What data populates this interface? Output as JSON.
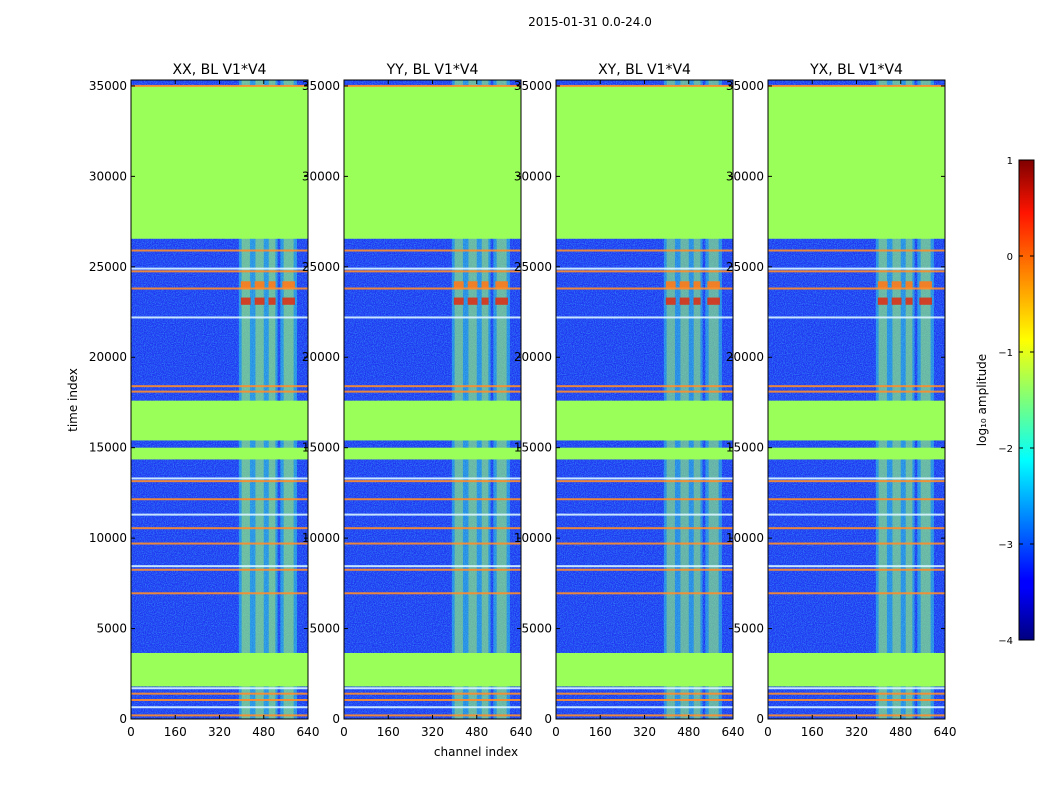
{
  "figure": {
    "suptitle": "2015-01-31 0.0-24.0",
    "xlabel": "channel index",
    "ylabel": "time index"
  },
  "chart_data": {
    "type": "heatmap",
    "panels": [
      {
        "title": "XX, BL V1*V4",
        "pol": "XX"
      },
      {
        "title": "YY, BL V1*V4",
        "pol": "YY"
      },
      {
        "title": "XY, BL V1*V4",
        "pol": "XY"
      },
      {
        "title": "YX, BL V1*V4",
        "pol": "YX"
      }
    ],
    "xlim": [
      0,
      640
    ],
    "ylim": [
      0,
      35328
    ],
    "xticks": [
      0,
      160,
      320,
      480,
      640
    ],
    "yticks": [
      0,
      5000,
      10000,
      15000,
      20000,
      25000,
      30000,
      35000
    ],
    "flagged_time_ranges": [
      [
        1800,
        3650
      ],
      [
        14350,
        15000
      ],
      [
        15400,
        17600
      ],
      [
        26550,
        35000
      ]
    ],
    "rfi_time_indices": [
      200,
      650,
      1050,
      1400,
      1700,
      6950,
      8250,
      8450,
      9700,
      10550,
      11300,
      12150,
      13150,
      13300,
      18100,
      18400,
      22200,
      23800,
      24750,
      24900,
      25900,
      35000
    ],
    "bright_channel_ranges": [
      [
        390,
        440
      ],
      [
        440,
        490
      ],
      [
        490,
        530
      ],
      [
        540,
        600
      ]
    ],
    "value_range_log10": [
      -4,
      1
    ],
    "colorbar": {
      "label": "log₁₀ amplitude",
      "ticks": [
        -4,
        -3,
        -2,
        -1,
        0,
        1
      ],
      "colormap": "jet"
    }
  },
  "colors": {
    "flagged": "#9AFF58",
    "background_low": "#1F35F0",
    "rfi_line": "#FF8C2A"
  }
}
